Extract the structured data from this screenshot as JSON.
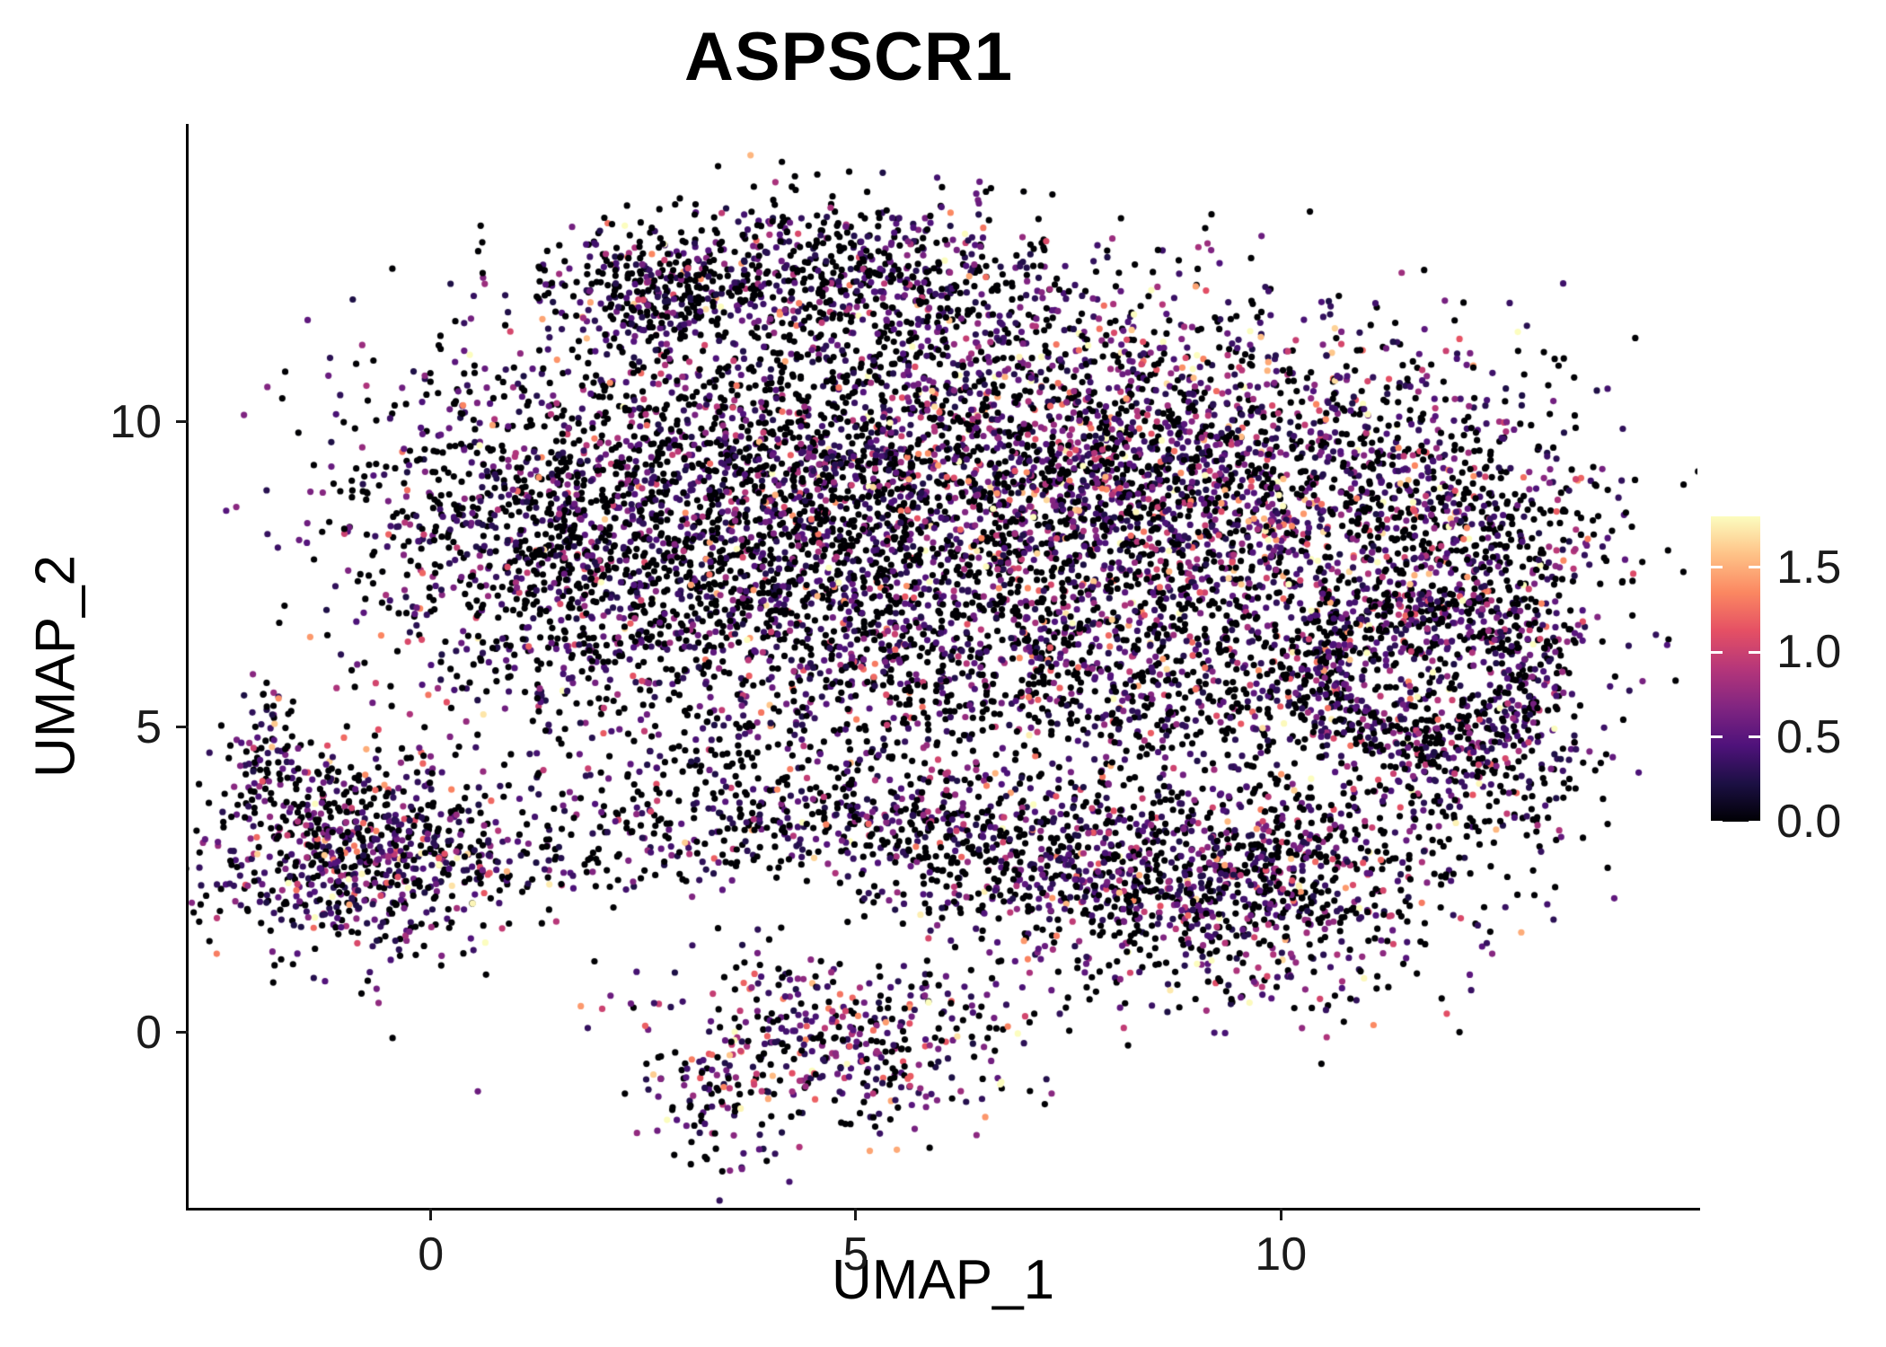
{
  "chart_data": {
    "type": "scatter",
    "title": "ASPSCR1",
    "xlabel": "UMAP_1",
    "ylabel": "UMAP_2",
    "xlim": [
      -2.85,
      14.9
    ],
    "ylim": [
      -2.87,
      14.85
    ],
    "x_ticks": [
      0,
      5,
      10
    ],
    "y_ticks": [
      0,
      5,
      10
    ],
    "grid": false,
    "background": "#ffffff",
    "axis_color": "#000000",
    "point_radius": 3.6,
    "seed": 42,
    "colorbar": {
      "position": "right",
      "vmin": 0.0,
      "vmax": 1.8,
      "ticks": [
        0.0,
        0.5,
        1.0,
        1.5
      ],
      "tick_labels": [
        "0.0",
        "0.5",
        "1.0",
        "1.5"
      ],
      "palette_name": "magma",
      "stops": [
        "#000004",
        "#1c1044",
        "#4f127b",
        "#812581",
        "#b5367a",
        "#e55064",
        "#fb8761",
        "#fec287",
        "#fcfdbf"
      ]
    },
    "clusters": [
      {
        "name": "main-left-lobe",
        "n": 1400,
        "cx": 1.6,
        "cy": 8.2,
        "sx": 1.3,
        "sy": 1.6,
        "zero": 0.58,
        "hot": 0.33
      },
      {
        "name": "main-center",
        "n": 1800,
        "cx": 4.3,
        "cy": 8.4,
        "sx": 1.4,
        "sy": 1.9,
        "zero": 0.56,
        "hot": 0.33
      },
      {
        "name": "main-right-upper",
        "n": 2000,
        "cx": 7.4,
        "cy": 9.3,
        "sx": 1.7,
        "sy": 1.4,
        "zero": 0.42,
        "hot": 0.45
      },
      {
        "name": "main-right",
        "n": 1300,
        "cx": 9.9,
        "cy": 8.3,
        "sx": 1.4,
        "sy": 1.6,
        "zero": 0.45,
        "hot": 0.45
      },
      {
        "name": "main-far-right",
        "n": 700,
        "cx": 12.3,
        "cy": 7.7,
        "sx": 0.9,
        "sy": 1.5,
        "zero": 0.5,
        "hot": 0.38
      },
      {
        "name": "top-ridge",
        "n": 650,
        "cx": 4.8,
        "cy": 12.4,
        "sx": 1.5,
        "sy": 0.6,
        "zero": 0.52,
        "hot": 0.33
      },
      {
        "name": "top-left-knob",
        "n": 250,
        "cx": 2.6,
        "cy": 12.1,
        "sx": 0.55,
        "sy": 0.5,
        "zero": 0.55,
        "hot": 0.3
      },
      {
        "name": "main-lower-middle",
        "n": 500,
        "cx": 6.2,
        "cy": 6.1,
        "sx": 1.6,
        "sy": 0.9,
        "zero": 0.52,
        "hot": 0.33
      },
      {
        "name": "main-lower-right",
        "n": 450,
        "cx": 9.0,
        "cy": 5.6,
        "sx": 1.5,
        "sy": 0.8,
        "zero": 0.52,
        "hot": 0.36
      },
      {
        "name": "right-ring",
        "n": 420,
        "cx": 11.7,
        "cy": 5.9,
        "ring": [
          0.9,
          1.7
        ],
        "zero": 0.5,
        "hot": 0.36
      },
      {
        "name": "left-island",
        "n": 780,
        "cx": -0.85,
        "cy": 2.9,
        "sx": 0.85,
        "sy": 0.85,
        "zero": 0.45,
        "hot": 0.42
      },
      {
        "name": "left-island-tail",
        "n": 80,
        "cx": -1.9,
        "cy": 4.6,
        "sx": 0.25,
        "sy": 0.45,
        "zero": 0.5,
        "hot": 0.33
      },
      {
        "name": "bridge-strand-west",
        "n": 200,
        "cx": 2.2,
        "cy": 3.2,
        "sx": 1.2,
        "sy": 0.55,
        "zero": 0.6,
        "hot": 0.3
      },
      {
        "name": "bridge-strand-mid",
        "n": 350,
        "cx": 5.3,
        "cy": 3.4,
        "sx": 1.3,
        "sy": 0.5,
        "zero": 0.52,
        "hot": 0.36
      },
      {
        "name": "bridge-strand-east",
        "n": 250,
        "cx": 6.9,
        "cy": 2.8,
        "sx": 1.0,
        "sy": 0.6,
        "zero": 0.55,
        "hot": 0.33
      },
      {
        "name": "bottom-right-cluster",
        "n": 1150,
        "cx": 9.3,
        "cy": 2.4,
        "sx": 1.4,
        "sy": 0.9,
        "zero": 0.5,
        "hot": 0.4
      },
      {
        "name": "right-extension",
        "n": 300,
        "cx": 12.1,
        "cy": 4.2,
        "sx": 0.8,
        "sy": 0.7,
        "zero": 0.5,
        "hot": 0.36
      },
      {
        "name": "bottom-island",
        "n": 430,
        "cx": 4.9,
        "cy": -0.1,
        "sx": 1.05,
        "sy": 0.7,
        "zero": 0.38,
        "hot": 0.5
      },
      {
        "name": "bottom-island-tip",
        "n": 90,
        "cx": 3.4,
        "cy": -1.0,
        "sx": 0.45,
        "sy": 0.5,
        "zero": 0.38,
        "hot": 0.5
      },
      {
        "name": "sparse-connectors",
        "n": 130,
        "cx": 4.0,
        "cy": 4.5,
        "sx": 1.8,
        "sy": 0.5,
        "zero": 0.6,
        "hot": 0.3
      }
    ]
  }
}
